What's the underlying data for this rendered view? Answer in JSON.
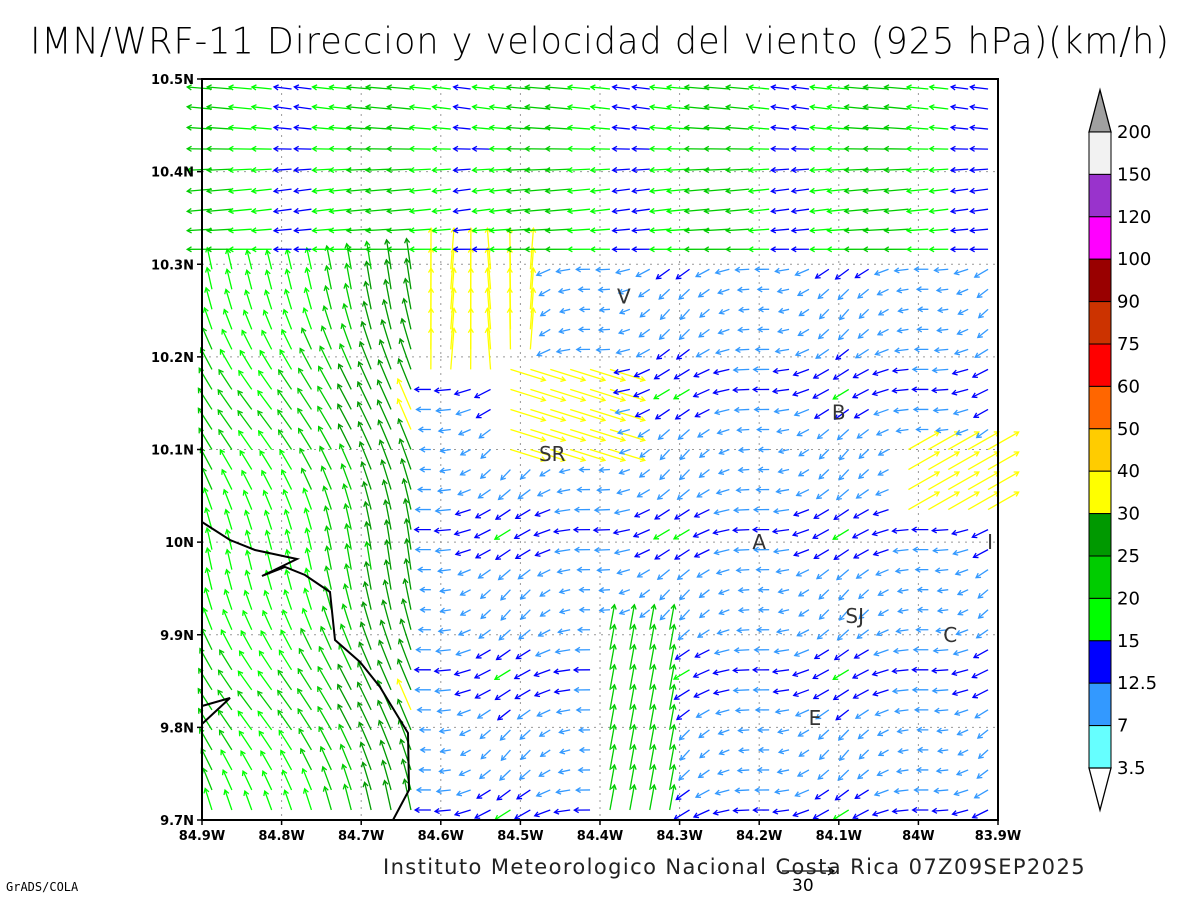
{
  "title": "IMN/WRF-11 Direccion y velocidad del viento (925 hPa)(km/h)",
  "footer": "Instituto Meteorologico Nacional Costa Rica 07Z09SEP2025",
  "credit": "GrADS/COLA",
  "reference_vector": {
    "value": "30"
  },
  "axes": {
    "x": {
      "range": [
        -84.9,
        -83.9
      ],
      "ticks": [
        "84.9W",
        "84.8W",
        "84.7W",
        "84.6W",
        "84.5W",
        "84.4W",
        "84.3W",
        "84.2W",
        "84.1W",
        "84W",
        "83.9W"
      ]
    },
    "y": {
      "range": [
        9.7,
        10.5
      ],
      "ticks": [
        "9.7N",
        "9.8N",
        "9.9N",
        "10N",
        "10.1N",
        "10.2N",
        "10.3N",
        "10.4N",
        "10.5N"
      ]
    },
    "grid": true
  },
  "legend": {
    "labels": [
      "200",
      "150",
      "120",
      "100",
      "90",
      "75",
      "60",
      "50",
      "40",
      "30",
      "25",
      "20",
      "15",
      "12.5",
      "7",
      "3.5"
    ],
    "colors": [
      "#f2f2f2",
      "#9933cc",
      "#ff00ff",
      "#990000",
      "#cc3300",
      "#ff0000",
      "#ff6600",
      "#ffcc00",
      "#ffff00",
      "#009900",
      "#00cc00",
      "#00ff00",
      "#0000ff",
      "#3399ff",
      "#66ffff"
    ],
    "top_color": "#a0a0a0"
  },
  "places": [
    {
      "name": "V",
      "lon": -84.37,
      "lat": 10.265
    },
    {
      "name": "B",
      "lon": -84.1,
      "lat": 10.14
    },
    {
      "name": "SR",
      "lon": -84.46,
      "lat": 10.095
    },
    {
      "name": "A",
      "lon": -84.2,
      "lat": 10.0
    },
    {
      "name": "I",
      "lon": -83.91,
      "lat": 10.0
    },
    {
      "name": "SJ",
      "lon": -84.08,
      "lat": 9.92
    },
    {
      "name": "C",
      "lon": -83.96,
      "lat": 9.9
    },
    {
      "name": "E",
      "lon": -84.13,
      "lat": 9.81
    }
  ]
}
